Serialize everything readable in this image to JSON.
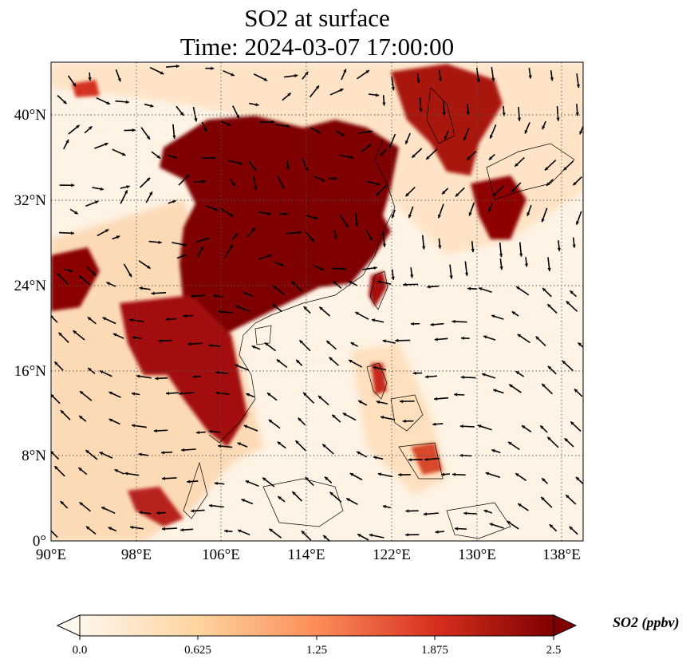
{
  "title": {
    "line1": "SO2 at surface",
    "line2": "Time: 2024-03-07 17:00:00"
  },
  "map": {
    "projection": "PlateCarree",
    "lon_range": [
      90,
      139.8
    ],
    "lat_range": [
      0,
      44.8
    ],
    "gridlines": "dotted",
    "x_ticks": [
      "90°E",
      "98°E",
      "106°E",
      "114°E",
      "122°E",
      "130°E",
      "138°E"
    ],
    "y_ticks": [
      "0°",
      "8°N",
      "16°N",
      "24°N",
      "32°N",
      "40°N"
    ],
    "field": "SO2 concentration at surface",
    "overlay": "wind vectors"
  },
  "colorbar": {
    "label": "SO2 (ppbv)",
    "ticks": [
      "0.0",
      "0.625",
      "1.25",
      "1.875",
      "2.5"
    ],
    "range": [
      0,
      2.5
    ],
    "extend": "both",
    "colormap": "OrRd",
    "colors": [
      "#fff7ec",
      "#fdd49e",
      "#fc8d59",
      "#d7301f",
      "#7f0000"
    ]
  }
}
